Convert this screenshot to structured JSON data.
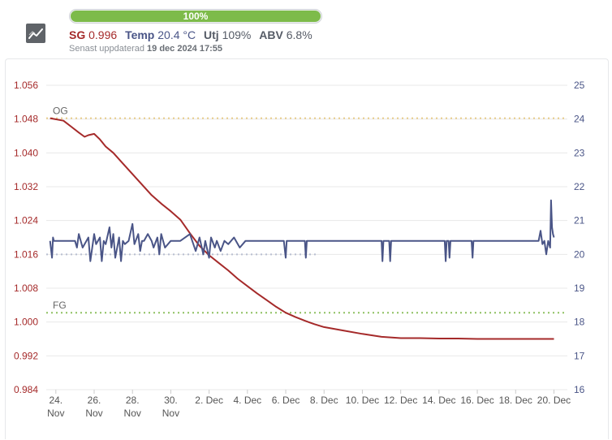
{
  "header": {
    "progress_label": "100%",
    "progress_value": 100,
    "sg_label": "SG",
    "sg_value": "0.996",
    "temp_label": "Temp",
    "temp_value": "20.4 °C",
    "utj_label": "Utj",
    "utj_value": "109%",
    "abv_label": "ABV",
    "abv_value": "6.8%",
    "updated_prefix": "Senast uppdaterad",
    "updated_value": "19 dec 2024 17:55",
    "icon": "line-chart-icon"
  },
  "colors": {
    "sg": "#a52a2a",
    "temp": "#4a5587",
    "og_line": "#e8cc88",
    "fg_line": "#8ec060",
    "temp_target": "#b8bfd0",
    "grid": "#e8e8e8",
    "progress": "#7dbb4a"
  },
  "chart_data": {
    "type": "line",
    "x_unit": "days since 23 Nov 2024",
    "xlim": [
      0.5,
      27.7
    ],
    "x_ticks": [
      {
        "x": 1,
        "label": [
          "24.",
          "Nov"
        ]
      },
      {
        "x": 3,
        "label": [
          "26.",
          "Nov"
        ]
      },
      {
        "x": 5,
        "label": [
          "28.",
          "Nov"
        ]
      },
      {
        "x": 7,
        "label": [
          "30.",
          "Nov"
        ]
      },
      {
        "x": 9,
        "label": [
          "2. Dec"
        ]
      },
      {
        "x": 11,
        "label": [
          "4. Dec"
        ]
      },
      {
        "x": 13,
        "label": [
          "6. Dec"
        ]
      },
      {
        "x": 15,
        "label": [
          "8. Dec"
        ]
      },
      {
        "x": 17,
        "label": [
          "10. Dec"
        ]
      },
      {
        "x": 19,
        "label": [
          "12. Dec"
        ]
      },
      {
        "x": 21,
        "label": [
          "14. Dec"
        ]
      },
      {
        "x": 23,
        "label": [
          "16. Dec"
        ]
      },
      {
        "x": 25,
        "label": [
          "18. Dec"
        ]
      },
      {
        "x": 27,
        "label": [
          "20. Dec"
        ]
      }
    ],
    "y_left": {
      "label": "SG",
      "ylim": [
        0.984,
        1.056
      ],
      "ticks": [
        "0.984",
        "0.992",
        "1.000",
        "1.008",
        "1.016",
        "1.024",
        "1.032",
        "1.040",
        "1.048",
        "1.056"
      ]
    },
    "y_right": {
      "label": "Temp",
      "ylim": [
        16,
        25
      ],
      "ticks": [
        "16",
        "17",
        "18",
        "19",
        "20",
        "21",
        "22",
        "23",
        "24",
        "25"
      ]
    },
    "reference_lines": [
      {
        "name": "OG",
        "axis": "left",
        "y": 1.0482,
        "label": "OG"
      },
      {
        "name": "FG",
        "axis": "left",
        "y": 1.0022,
        "label": "FG"
      },
      {
        "name": "temp-target",
        "axis": "right",
        "y": 20.0,
        "x_end": 14.7
      }
    ],
    "series": [
      {
        "name": "SG",
        "axis": "left",
        "x": [
          0.7,
          1.4,
          1.8,
          2.2,
          2.5,
          2.7,
          3.0,
          3.3,
          3.6,
          4.0,
          4.5,
          5.0,
          5.5,
          6.0,
          6.5,
          7.0,
          7.5,
          8.0,
          8.5,
          9.0,
          9.5,
          10.0,
          10.5,
          11.0,
          11.5,
          12.0,
          12.5,
          13.0,
          13.5,
          14.0,
          14.5,
          15.0,
          16.0,
          17.0,
          18.0,
          19.0,
          20.0,
          21.0,
          22.0,
          23.0,
          24.0,
          25.0,
          26.0,
          27.0
        ],
        "values": [
          1.0482,
          1.0476,
          1.0462,
          1.0448,
          1.0438,
          1.0442,
          1.0445,
          1.0432,
          1.0415,
          1.04,
          1.0375,
          1.035,
          1.0325,
          1.03,
          1.028,
          1.0262,
          1.0242,
          1.021,
          1.018,
          1.0158,
          1.014,
          1.0122,
          1.0102,
          1.0085,
          1.0068,
          1.0052,
          1.0036,
          1.0022,
          1.0012,
          1.0003,
          0.9995,
          0.9988,
          0.998,
          0.9972,
          0.9965,
          0.9962,
          0.9962,
          0.9961,
          0.9961,
          0.996,
          0.996,
          0.996,
          0.996,
          0.996
        ]
      },
      {
        "name": "Temp",
        "axis": "right",
        "x": [
          0.7,
          0.8,
          0.85,
          0.9,
          1.0,
          2.0,
          2.1,
          2.2,
          2.4,
          2.7,
          2.8,
          3.0,
          3.1,
          3.3,
          3.4,
          3.5,
          3.6,
          3.8,
          3.9,
          4.0,
          4.1,
          4.3,
          4.4,
          4.5,
          4.6,
          4.8,
          5.0,
          5.1,
          5.3,
          5.4,
          5.5,
          5.6,
          5.8,
          6.0,
          6.1,
          6.3,
          6.4,
          6.5,
          6.7,
          7.0,
          7.5,
          8.0,
          8.3,
          8.5,
          8.7,
          8.8,
          9.0,
          9.1,
          9.3,
          9.4,
          9.6,
          9.8,
          10.0,
          10.3,
          10.6,
          10.9,
          11.0,
          12.9,
          13.0,
          13.05,
          14.0,
          14.05,
          14.1,
          18.0,
          18.05,
          18.1,
          18.4,
          18.45,
          18.5,
          21.3,
          21.35,
          21.4,
          21.5,
          21.55,
          21.6,
          22.7,
          22.75,
          22.8,
          26.2,
          26.3,
          26.4,
          26.5,
          26.6,
          26.7,
          26.8,
          26.85,
          26.9,
          26.95,
          27.0
        ],
        "values": [
          20.4,
          19.9,
          20.5,
          20.4,
          20.4,
          20.4,
          20.2,
          20.6,
          20.2,
          20.5,
          19.8,
          20.6,
          20.3,
          20.5,
          19.8,
          20.4,
          20.3,
          20.8,
          20.2,
          20.6,
          19.9,
          20.5,
          19.8,
          20.4,
          20.3,
          20.4,
          20.9,
          20.3,
          20.6,
          20.1,
          20.4,
          20.4,
          20.6,
          20.4,
          20.2,
          20.5,
          20.0,
          20.6,
          20.2,
          20.4,
          20.4,
          20.6,
          20.1,
          20.5,
          20.0,
          20.4,
          19.9,
          20.5,
          20.2,
          20.4,
          20.1,
          20.4,
          20.3,
          20.5,
          20.2,
          20.4,
          20.4,
          20.4,
          19.9,
          20.4,
          20.4,
          19.9,
          20.4,
          20.4,
          19.8,
          20.4,
          20.4,
          19.8,
          20.4,
          20.4,
          19.8,
          20.4,
          20.4,
          19.9,
          20.4,
          20.4,
          19.9,
          20.4,
          20.4,
          20.7,
          20.3,
          20.4,
          20.0,
          20.4,
          20.2,
          21.6,
          20.8,
          20.6,
          20.5
        ]
      }
    ]
  }
}
